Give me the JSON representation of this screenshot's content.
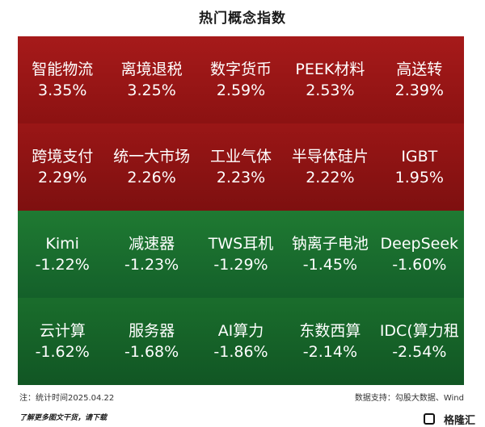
{
  "title": "热门概念指数",
  "tiles": [
    {
      "name": "智能物流",
      "value": "3.35%"
    },
    {
      "name": "离境退税",
      "value": "3.25%"
    },
    {
      "name": "数字货币",
      "value": "2.59%"
    },
    {
      "name": "PEEK材料",
      "value": "2.53%"
    },
    {
      "name": "高送转",
      "value": "2.39%"
    },
    {
      "name": "跨境支付",
      "value": "2.29%"
    },
    {
      "name": "统一大市场",
      "value": "2.26%"
    },
    {
      "name": "工业气体",
      "value": "2.23%"
    },
    {
      "name": "半导体硅片",
      "value": "2.22%"
    },
    {
      "name": "IGBT",
      "value": "1.95%"
    },
    {
      "name": "Kimi",
      "value": "-1.22%"
    },
    {
      "name": "减速器",
      "value": "-1.23%"
    },
    {
      "name": "TWS耳机",
      "value": "-1.29%"
    },
    {
      "name": "钠离子电池",
      "value": "-1.45%"
    },
    {
      "name": "DeepSeek",
      "value": "-1.60%"
    },
    {
      "name": "云计算",
      "value": "-1.62%"
    },
    {
      "name": "服务器",
      "value": "-1.68%"
    },
    {
      "name": "AI算力",
      "value": "-1.86%"
    },
    {
      "name": "东数西算",
      "value": "-2.14%"
    },
    {
      "name": "IDC(算力租",
      "value": "-2.54%"
    }
  ],
  "footer": {
    "note": "注：统计时间2025.04.22",
    "source": "数据支持：勾股大数据、Wind"
  },
  "bottom_note": "了解更多图文干货，请下载",
  "brand": "格隆汇",
  "colors": {
    "up": "#a61a1a",
    "down": "#1f7a32"
  }
}
